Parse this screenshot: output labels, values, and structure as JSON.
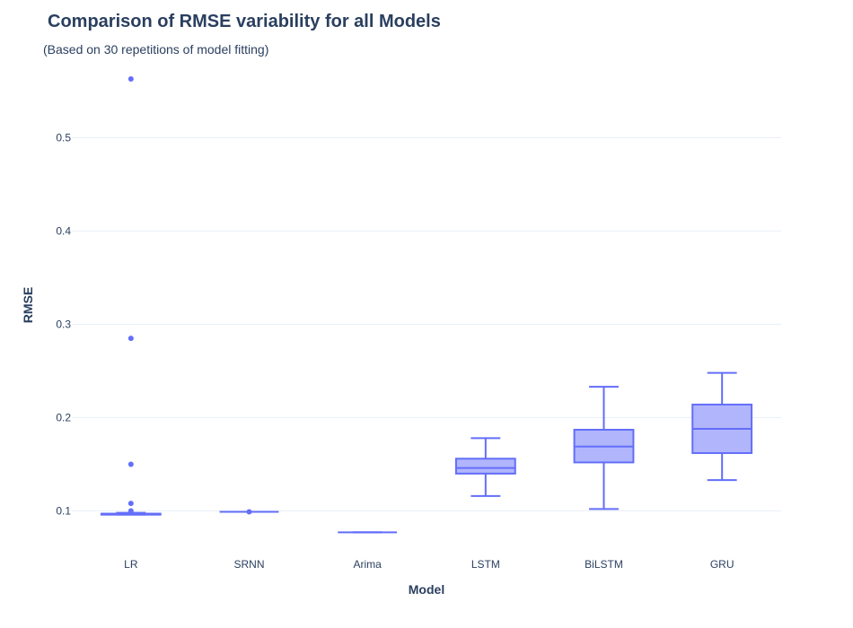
{
  "chart_data": {
    "type": "box",
    "title": "Comparison of RMSE variability for all Models",
    "subtitle": "(Based on 30 repetitions of model fitting)",
    "xlabel": "Model",
    "ylabel": "RMSE",
    "ylim": [
      0.06,
      0.58
    ],
    "yticks": [
      0.1,
      0.2,
      0.3,
      0.4,
      0.5
    ],
    "ytick_labels": [
      "0.1",
      "0.2",
      "0.3",
      "0.4",
      "0.5"
    ],
    "grid": true,
    "color": "#636efa",
    "fill_color": "#b1b5fc",
    "categories": [
      "LR",
      "SRNN",
      "Arima",
      "LSTM",
      "BiLSTM",
      "GRU"
    ],
    "boxes": [
      {
        "name": "LR",
        "lowerfence": 0.096,
        "q1": 0.096,
        "median": 0.097,
        "q3": 0.097,
        "upperfence": 0.098,
        "outliers": [
          0.563,
          0.285,
          0.15,
          0.108,
          0.1
        ]
      },
      {
        "name": "SRNN",
        "lowerfence": 0.099,
        "q1": 0.099,
        "median": 0.099,
        "q3": 0.099,
        "upperfence": 0.099,
        "outliers": [
          0.099
        ]
      },
      {
        "name": "Arima",
        "lowerfence": 0.077,
        "q1": 0.077,
        "median": 0.077,
        "q3": 0.077,
        "upperfence": 0.077,
        "outliers": []
      },
      {
        "name": "LSTM",
        "lowerfence": 0.116,
        "q1": 0.14,
        "median": 0.146,
        "q3": 0.156,
        "upperfence": 0.178,
        "outliers": []
      },
      {
        "name": "BiLSTM",
        "lowerfence": 0.102,
        "q1": 0.152,
        "median": 0.169,
        "q3": 0.187,
        "upperfence": 0.233,
        "outliers": []
      },
      {
        "name": "GRU",
        "lowerfence": 0.133,
        "q1": 0.162,
        "median": 0.188,
        "q3": 0.214,
        "upperfence": 0.248,
        "outliers": []
      }
    ]
  }
}
